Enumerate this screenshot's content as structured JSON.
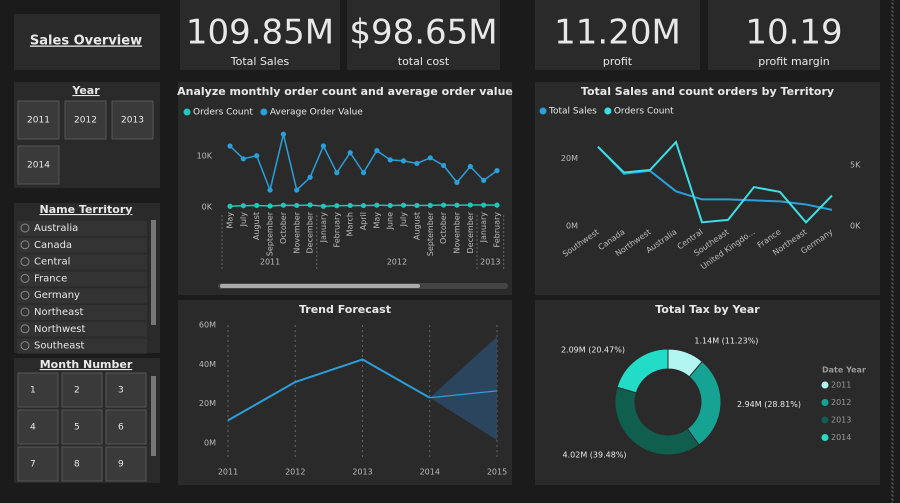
{
  "sidebar": {
    "title": "Sales Overview",
    "year_slicer": {
      "title": "Year",
      "options": [
        "2011",
        "2012",
        "2013",
        "2014"
      ]
    },
    "territory_slicer": {
      "title": "Name Territory",
      "options": [
        "Australia",
        "Canada",
        "Central",
        "France",
        "Germany",
        "Northeast",
        "Northwest",
        "Southeast"
      ]
    },
    "month_slicer": {
      "title": "Month Number",
      "options": [
        "1",
        "2",
        "3",
        "4",
        "5",
        "6",
        "7",
        "8",
        "9"
      ]
    }
  },
  "kpis": [
    {
      "value": "109.85M",
      "label": "Total Sales"
    },
    {
      "value": "$98.65M",
      "label": "total cost"
    },
    {
      "value": "11.20M",
      "label": "profit"
    },
    {
      "value": "10.19",
      "label": "profit margin"
    }
  ],
  "chart_data": [
    {
      "type": "line",
      "title": "Analyze monthly order count and average order value",
      "categories": [
        "May",
        "July",
        "August",
        "September",
        "October",
        "November",
        "December",
        "January",
        "February",
        "March",
        "April",
        "May",
        "June",
        "July",
        "August",
        "September",
        "October",
        "November",
        "December",
        "January",
        "February"
      ],
      "groups": [
        {
          "label": "2011",
          "count": 7
        },
        {
          "label": "2012",
          "count": 12
        },
        {
          "label": "2013",
          "count": 2
        }
      ],
      "series": [
        {
          "name": "Orders Count",
          "color": "#1fc7b6",
          "values": [
            150,
            250,
            300,
            200,
            350,
            300,
            400,
            150,
            250,
            300,
            280,
            350,
            300,
            350,
            300,
            320,
            380,
            350,
            400,
            380,
            360
          ]
        },
        {
          "name": "Average Order Value",
          "color": "#2b9fd9",
          "values": [
            11900,
            9400,
            10000,
            3300,
            14200,
            3300,
            5800,
            11900,
            6700,
            10600,
            6700,
            11000,
            9200,
            9000,
            8500,
            9600,
            8100,
            4800,
            7900,
            5200,
            7100
          ]
        }
      ],
      "ylim": [
        0,
        16000
      ],
      "yticks": [
        {
          "value": 0,
          "label": "0K"
        },
        {
          "value": 10000,
          "label": "10K"
        }
      ]
    },
    {
      "type": "line",
      "title": "Total Sales and count orders by Territory",
      "categories": [
        "Southwest",
        "Canada",
        "Northwest",
        "Australia",
        "Central",
        "Southeast",
        "United Kingdo...",
        "France",
        "Northeast",
        "Germany"
      ],
      "series": [
        {
          "name": "Total Sales",
          "color": "#2b9fd9",
          "values": [
            23600000,
            15500000,
            16400000,
            10300000,
            7900000,
            7900000,
            7600000,
            7300000,
            6400000,
            4800000
          ]
        },
        {
          "name": "Orders Count",
          "color": "#3be0e6",
          "axis": "y2",
          "values": [
            6500,
            4400,
            4600,
            6900,
            300,
            500,
            3200,
            2800,
            300,
            2500
          ]
        }
      ],
      "ylim": [
        0,
        30000000
      ],
      "yticks": [
        {
          "value": 0,
          "label": "0M"
        },
        {
          "value": 20000000,
          "label": "20M"
        }
      ],
      "y2lim": [
        0,
        8300
      ],
      "y2ticks": [
        {
          "value": 0,
          "label": "0K"
        },
        {
          "value": 5000,
          "label": "5K"
        }
      ]
    },
    {
      "type": "forecast",
      "title": "Trend Forecast",
      "x": [
        2011,
        2012,
        2013,
        2014,
        2015
      ],
      "xlim": [
        2011,
        2015
      ],
      "xticks": [
        2011,
        2012,
        2013,
        2014,
        2015
      ],
      "series": [
        {
          "color": "#2b9fd9",
          "values": [
            11500000,
            31000000,
            42500000,
            23000000,
            null
          ]
        }
      ],
      "forecast": {
        "color": "#2b9fd9",
        "band_color": "#2a4a66",
        "values": [
          null,
          null,
          null,
          23000000,
          26500000
        ],
        "upper": [
          null,
          null,
          null,
          23000000,
          54000000
        ],
        "lower": [
          null,
          null,
          null,
          23000000,
          1500000
        ]
      },
      "ylim": [
        0,
        60000000
      ],
      "yticks": [
        {
          "value": 0,
          "label": "0M"
        },
        {
          "value": 20000000,
          "label": "20M"
        },
        {
          "value": 40000000,
          "label": "40M"
        },
        {
          "value": 60000000,
          "label": "60M"
        }
      ]
    },
    {
      "type": "pie",
      "title": "Total Tax by Year",
      "legend_title": "Date Year",
      "donut": true,
      "categories": [
        "2011",
        "2012",
        "2013",
        "2014"
      ],
      "values": [
        1.14,
        2.94,
        4.02,
        2.09
      ],
      "value_labels": [
        "1.14M (11.23%)",
        "2.94M (28.81%)",
        "4.02M (39.48%)",
        "2.09M (20.47%)"
      ],
      "colors": [
        "#b3f5f0",
        "#17a394",
        "#0f5e4e",
        "#23dcc8"
      ]
    }
  ]
}
